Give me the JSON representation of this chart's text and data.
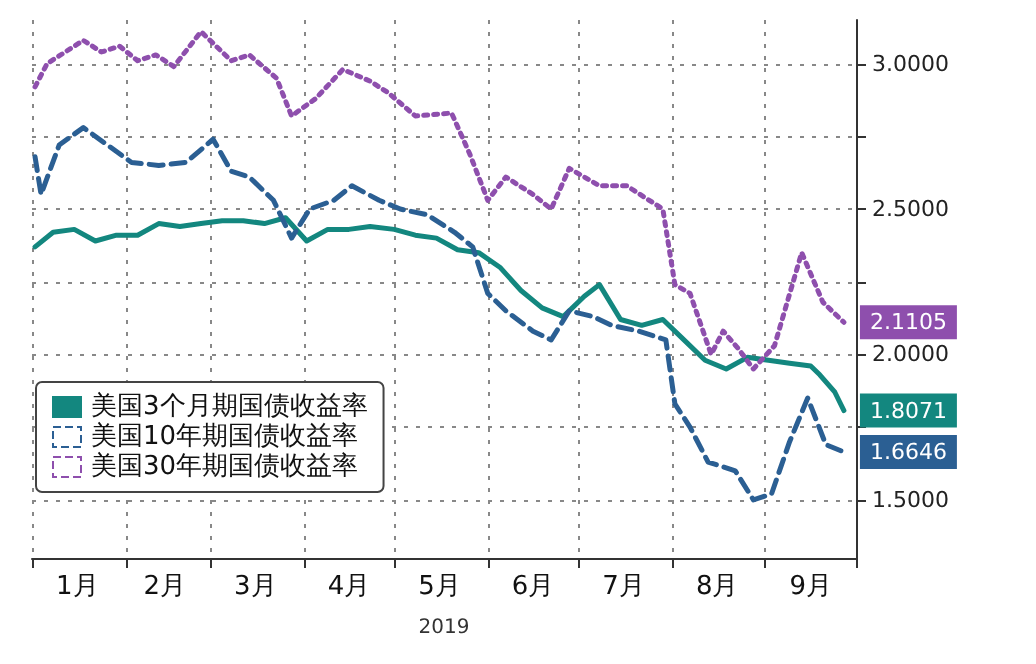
{
  "chart_data": {
    "type": "line",
    "xlabel": "2019",
    "xlim": [
      "2019-01-01",
      "2019-10-01"
    ],
    "xticks": [
      {
        "value": "2019-01-01",
        "label": null
      },
      {
        "value": "2019-01-16",
        "label": "1月"
      },
      {
        "value": "2019-02-01",
        "label": null
      },
      {
        "value": "2019-02-14",
        "label": "2月"
      },
      {
        "value": "2019-03-01",
        "label": null
      },
      {
        "value": "2019-03-16",
        "label": "3月"
      },
      {
        "value": "2019-04-01",
        "label": null
      },
      {
        "value": "2019-04-16",
        "label": "4月"
      },
      {
        "value": "2019-05-01",
        "label": null
      },
      {
        "value": "2019-05-16",
        "label": "5月"
      },
      {
        "value": "2019-06-01",
        "label": null
      },
      {
        "value": "2019-06-16",
        "label": "6月"
      },
      {
        "value": "2019-07-01",
        "label": null
      },
      {
        "value": "2019-07-16",
        "label": "7月"
      },
      {
        "value": "2019-08-01",
        "label": null
      },
      {
        "value": "2019-08-16",
        "label": "8月"
      },
      {
        "value": "2019-09-01",
        "label": null
      },
      {
        "value": "2019-09-16",
        "label": "9月"
      },
      {
        "value": "2019-10-01",
        "label": null
      }
    ],
    "ylim": [
      1.3,
      3.15
    ],
    "yticks": [
      {
        "value": 1.5,
        "label": "1.5000"
      },
      {
        "value": 1.75,
        "label": null
      },
      {
        "value": 2.0,
        "label": "2.0000"
      },
      {
        "value": 2.25,
        "label": null
      },
      {
        "value": 2.5,
        "label": "2.5000"
      },
      {
        "value": 2.75,
        "label": null
      },
      {
        "value": 3.0,
        "label": "3.0000"
      }
    ],
    "grid": true,
    "legend": "bottom left",
    "marker": "none",
    "series": [
      {
        "name": "美国3个月期国债收益率",
        "color": "#13877f",
        "line_style": "solid",
        "x": [
          "2019-01-02",
          "2019-01-08",
          "2019-01-15",
          "2019-01-22",
          "2019-01-29",
          "2019-02-05",
          "2019-02-12",
          "2019-02-19",
          "2019-02-26",
          "2019-03-05",
          "2019-03-12",
          "2019-03-19",
          "2019-03-26",
          "2019-04-02",
          "2019-04-09",
          "2019-04-16",
          "2019-04-23",
          "2019-05-01",
          "2019-05-08",
          "2019-05-15",
          "2019-05-22",
          "2019-05-29",
          "2019-06-05",
          "2019-06-12",
          "2019-06-19",
          "2019-06-26",
          "2019-07-03",
          "2019-07-08",
          "2019-07-15",
          "2019-07-22",
          "2019-07-29",
          "2019-08-05",
          "2019-08-12",
          "2019-08-19",
          "2019-08-26",
          "2019-09-02",
          "2019-09-09",
          "2019-09-16",
          "2019-09-19",
          "2019-09-24",
          "2019-09-27"
        ],
        "values": [
          2.37,
          2.42,
          2.43,
          2.39,
          2.41,
          2.41,
          2.45,
          2.44,
          2.45,
          2.46,
          2.46,
          2.45,
          2.47,
          2.39,
          2.43,
          2.43,
          2.44,
          2.43,
          2.41,
          2.4,
          2.36,
          2.35,
          2.3,
          2.22,
          2.16,
          2.13,
          2.2,
          2.24,
          2.12,
          2.1,
          2.12,
          2.05,
          1.98,
          1.95,
          1.99,
          1.98,
          1.97,
          1.96,
          1.93,
          1.87,
          1.8071
        ],
        "value_labels": [
          null,
          null,
          null,
          null,
          null,
          null,
          null,
          null,
          null,
          null,
          null,
          null,
          null,
          null,
          null,
          null,
          null,
          null,
          null,
          null,
          null,
          null,
          null,
          null,
          null,
          null,
          null,
          null,
          null,
          null,
          null,
          null,
          null,
          null,
          null,
          null,
          null,
          null,
          null,
          null,
          "1.8071"
        ]
      },
      {
        "name": "美国10年期国债收益率",
        "color": "#2b5f93",
        "line_style": "dashed",
        "x": [
          "2019-01-02",
          "2019-01-04",
          "2019-01-10",
          "2019-01-18",
          "2019-01-26",
          "2019-02-03",
          "2019-02-12",
          "2019-02-21",
          "2019-03-02",
          "2019-03-08",
          "2019-03-14",
          "2019-03-22",
          "2019-03-28",
          "2019-04-03",
          "2019-04-11",
          "2019-04-17",
          "2019-04-26",
          "2019-05-03",
          "2019-05-12",
          "2019-05-21",
          "2019-05-27",
          "2019-06-01",
          "2019-06-07",
          "2019-06-16",
          "2019-06-22",
          "2019-06-28",
          "2019-07-06",
          "2019-07-12",
          "2019-07-21",
          "2019-07-30",
          "2019-08-02",
          "2019-08-07",
          "2019-08-13",
          "2019-08-22",
          "2019-08-28",
          "2019-09-03",
          "2019-09-09",
          "2019-09-15",
          "2019-09-21",
          "2019-09-27"
        ],
        "values": [
          2.68,
          2.55,
          2.72,
          2.78,
          2.72,
          2.66,
          2.65,
          2.66,
          2.74,
          2.63,
          2.61,
          2.53,
          2.4,
          2.5,
          2.53,
          2.58,
          2.53,
          2.5,
          2.48,
          2.42,
          2.37,
          2.21,
          2.15,
          2.08,
          2.05,
          2.15,
          2.13,
          2.1,
          2.08,
          2.05,
          1.83,
          1.75,
          1.63,
          1.6,
          1.5,
          1.52,
          1.7,
          1.85,
          1.69,
          1.6646
        ],
        "value_labels": [
          null,
          null,
          null,
          null,
          null,
          null,
          null,
          null,
          null,
          null,
          null,
          null,
          null,
          null,
          null,
          null,
          null,
          null,
          null,
          null,
          null,
          null,
          null,
          null,
          null,
          null,
          null,
          null,
          null,
          null,
          null,
          null,
          null,
          null,
          null,
          null,
          null,
          null,
          null,
          "1.6646"
        ]
      },
      {
        "name": "美国30年期国债收益率",
        "color": "#8e4fad",
        "line_style": "dotted",
        "x": [
          "2019-01-02",
          "2019-01-06",
          "2019-01-18",
          "2019-01-24",
          "2019-01-30",
          "2019-02-05",
          "2019-02-11",
          "2019-02-17",
          "2019-02-26",
          "2019-03-08",
          "2019-03-14",
          "2019-03-23",
          "2019-03-28",
          "2019-04-05",
          "2019-04-14",
          "2019-04-23",
          "2019-04-29",
          "2019-05-08",
          "2019-05-20",
          "2019-05-26",
          "2019-06-01",
          "2019-06-07",
          "2019-06-16",
          "2019-06-22",
          "2019-06-28",
          "2019-07-08",
          "2019-07-17",
          "2019-07-29",
          "2019-08-02",
          "2019-08-07",
          "2019-08-14",
          "2019-08-18",
          "2019-08-23",
          "2019-08-28",
          "2019-09-04",
          "2019-09-13",
          "2019-09-20",
          "2019-09-23",
          "2019-09-27"
        ],
        "values": [
          2.92,
          3.0,
          3.08,
          3.04,
          3.06,
          3.01,
          3.03,
          2.99,
          3.11,
          3.01,
          3.03,
          2.95,
          2.82,
          2.88,
          2.98,
          2.94,
          2.9,
          2.82,
          2.83,
          2.69,
          2.53,
          2.61,
          2.55,
          2.5,
          2.64,
          2.58,
          2.58,
          2.5,
          2.24,
          2.21,
          2.0,
          2.08,
          2.02,
          1.95,
          2.03,
          2.35,
          2.18,
          2.15,
          2.1105
        ],
        "value_labels": [
          null,
          null,
          null,
          null,
          null,
          null,
          null,
          null,
          null,
          null,
          null,
          null,
          null,
          null,
          null,
          null,
          null,
          null,
          null,
          null,
          null,
          null,
          null,
          null,
          null,
          null,
          null,
          null,
          null,
          null,
          null,
          null,
          null,
          null,
          null,
          null,
          null,
          null,
          "2.1105"
        ]
      }
    ]
  }
}
